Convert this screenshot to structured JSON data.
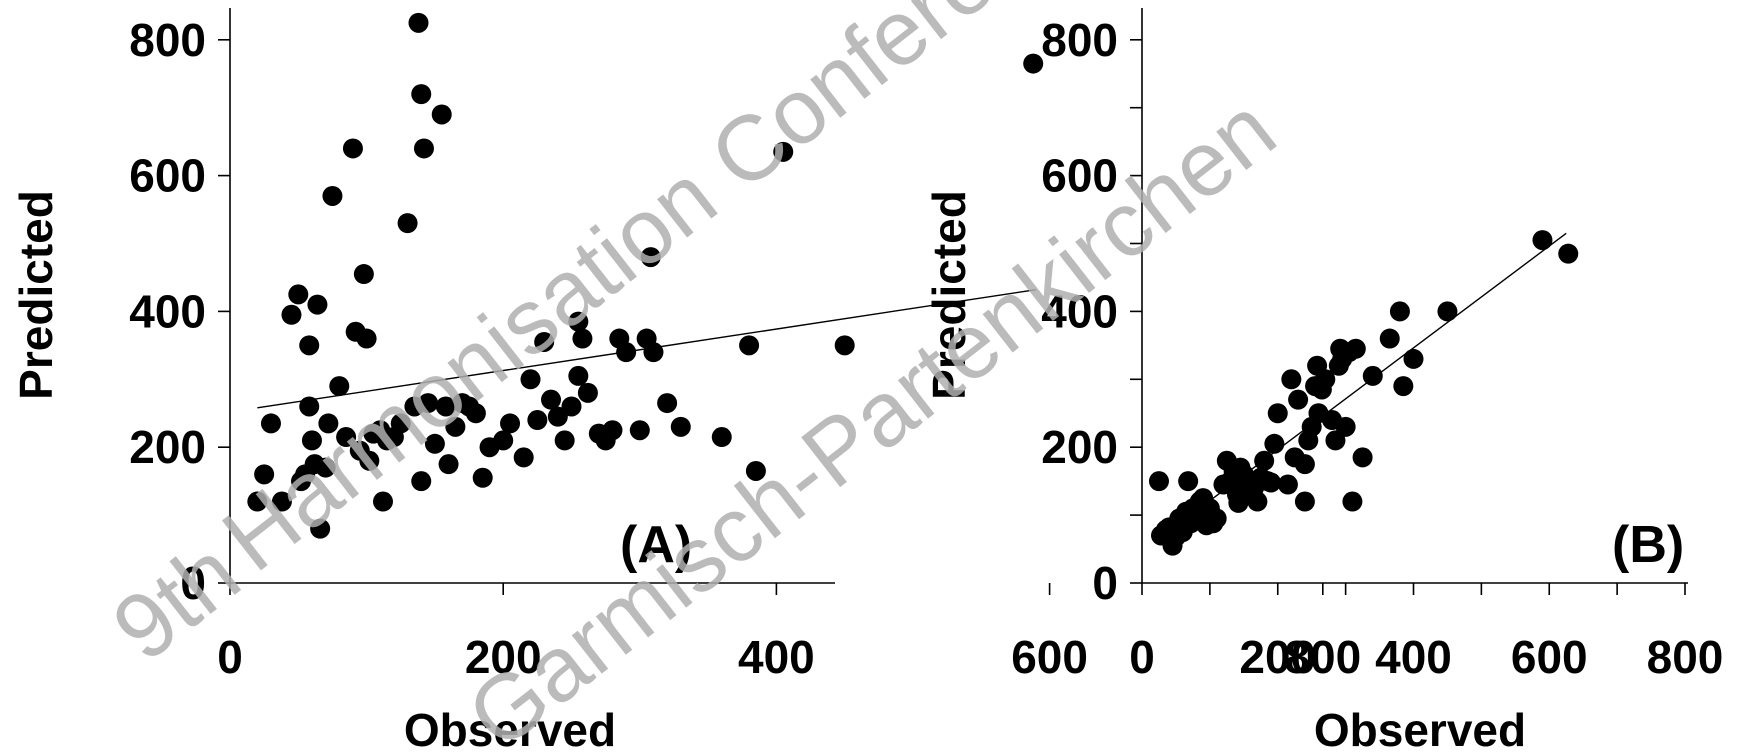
{
  "watermark": {
    "line1_sup": "9th",
    "line1": "Harmonisation Conference",
    "line2": "Garmisch-Partenkirchen",
    "color": "#b0b0b0"
  },
  "chart_data": [
    {
      "type": "scatter",
      "panel_label": "(A)",
      "xlabel": "Observed",
      "ylabel": "Predicted",
      "xlim": [
        0,
        880
      ],
      "ylim": [
        0,
        850
      ],
      "xticks": [
        0,
        200,
        400,
        600,
        800
      ],
      "yticks": [
        0,
        200,
        400,
        600,
        800
      ],
      "fit_line": [
        [
          20,
          258
        ],
        [
          590,
          432
        ]
      ],
      "points": [
        [
          20,
          120
        ],
        [
          25,
          160
        ],
        [
          30,
          235
        ],
        [
          38,
          120
        ],
        [
          45,
          395
        ],
        [
          50,
          425
        ],
        [
          52,
          150
        ],
        [
          55,
          160
        ],
        [
          58,
          260
        ],
        [
          58,
          350
        ],
        [
          60,
          210
        ],
        [
          62,
          175
        ],
        [
          64,
          410
        ],
        [
          66,
          80
        ],
        [
          70,
          170
        ],
        [
          72,
          235
        ],
        [
          75,
          570
        ],
        [
          80,
          290
        ],
        [
          85,
          215
        ],
        [
          90,
          640
        ],
        [
          92,
          370
        ],
        [
          95,
          195
        ],
        [
          98,
          455
        ],
        [
          100,
          360
        ],
        [
          102,
          180
        ],
        [
          105,
          220
        ],
        [
          110,
          225
        ],
        [
          112,
          120
        ],
        [
          115,
          210
        ],
        [
          120,
          215
        ],
        [
          125,
          235
        ],
        [
          130,
          530
        ],
        [
          135,
          260
        ],
        [
          138,
          825
        ],
        [
          140,
          720
        ],
        [
          140,
          150
        ],
        [
          142,
          640
        ],
        [
          145,
          265
        ],
        [
          150,
          205
        ],
        [
          155,
          690
        ],
        [
          158,
          260
        ],
        [
          160,
          175
        ],
        [
          165,
          230
        ],
        [
          170,
          265
        ],
        [
          175,
          260
        ],
        [
          180,
          250
        ],
        [
          185,
          155
        ],
        [
          190,
          200
        ],
        [
          200,
          210
        ],
        [
          205,
          235
        ],
        [
          215,
          185
        ],
        [
          220,
          300
        ],
        [
          225,
          240
        ],
        [
          230,
          355
        ],
        [
          235,
          270
        ],
        [
          240,
          245
        ],
        [
          245,
          210
        ],
        [
          250,
          260
        ],
        [
          255,
          385
        ],
        [
          255,
          305
        ],
        [
          258,
          360
        ],
        [
          262,
          280
        ],
        [
          270,
          220
        ],
        [
          275,
          210
        ],
        [
          280,
          225
        ],
        [
          285,
          360
        ],
        [
          290,
          340
        ],
        [
          300,
          225
        ],
        [
          305,
          360
        ],
        [
          308,
          480
        ],
        [
          310,
          340
        ],
        [
          320,
          265
        ],
        [
          330,
          230
        ],
        [
          360,
          215
        ],
        [
          380,
          350
        ],
        [
          385,
          165
        ],
        [
          450,
          350
        ],
        [
          588,
          765
        ],
        [
          405,
          635
        ]
      ]
    },
    {
      "type": "scatter",
      "panel_label": "(B)",
      "xlabel": "Observed",
      "ylabel": "Predicted",
      "xlim": [
        0,
        800
      ],
      "ylim": [
        0,
        850
      ],
      "xticks": [
        0,
        200,
        400,
        600,
        800
      ],
      "yticks": [
        0,
        200,
        400,
        600,
        800
      ],
      "fit_line": [
        [
          25,
          65
        ],
        [
          625,
          515
        ]
      ],
      "points": [
        [
          25,
          150
        ],
        [
          28,
          70
        ],
        [
          35,
          78
        ],
        [
          40,
          82
        ],
        [
          45,
          55
        ],
        [
          50,
          68
        ],
        [
          55,
          95
        ],
        [
          60,
          75
        ],
        [
          65,
          105
        ],
        [
          68,
          150
        ],
        [
          72,
          88
        ],
        [
          75,
          110
        ],
        [
          80,
          100
        ],
        [
          85,
          120
        ],
        [
          90,
          125
        ],
        [
          95,
          85
        ],
        [
          100,
          110
        ],
        [
          105,
          88
        ],
        [
          110,
          95
        ],
        [
          120,
          145
        ],
        [
          125,
          180
        ],
        [
          130,
          150
        ],
        [
          135,
          165
        ],
        [
          140,
          130
        ],
        [
          142,
          118
        ],
        [
          145,
          170
        ],
        [
          150,
          160
        ],
        [
          155,
          148
        ],
        [
          160,
          130
        ],
        [
          165,
          140
        ],
        [
          170,
          120
        ],
        [
          175,
          155
        ],
        [
          180,
          180
        ],
        [
          185,
          150
        ],
        [
          190,
          148
        ],
        [
          195,
          205
        ],
        [
          200,
          250
        ],
        [
          215,
          145
        ],
        [
          220,
          300
        ],
        [
          225,
          185
        ],
        [
          230,
          270
        ],
        [
          240,
          175
        ],
        [
          240,
          120
        ],
        [
          245,
          210
        ],
        [
          250,
          230
        ],
        [
          255,
          290
        ],
        [
          258,
          320
        ],
        [
          260,
          250
        ],
        [
          265,
          285
        ],
        [
          270,
          300
        ],
        [
          280,
          240
        ],
        [
          285,
          210
        ],
        [
          290,
          320
        ],
        [
          292,
          345
        ],
        [
          295,
          330
        ],
        [
          300,
          230
        ],
        [
          305,
          340
        ],
        [
          310,
          120
        ],
        [
          315,
          345
        ],
        [
          325,
          185
        ],
        [
          340,
          305
        ],
        [
          365,
          360
        ],
        [
          380,
          400
        ],
        [
          385,
          290
        ],
        [
          400,
          330
        ],
        [
          450,
          400
        ],
        [
          590,
          505
        ],
        [
          628,
          485
        ]
      ]
    }
  ]
}
